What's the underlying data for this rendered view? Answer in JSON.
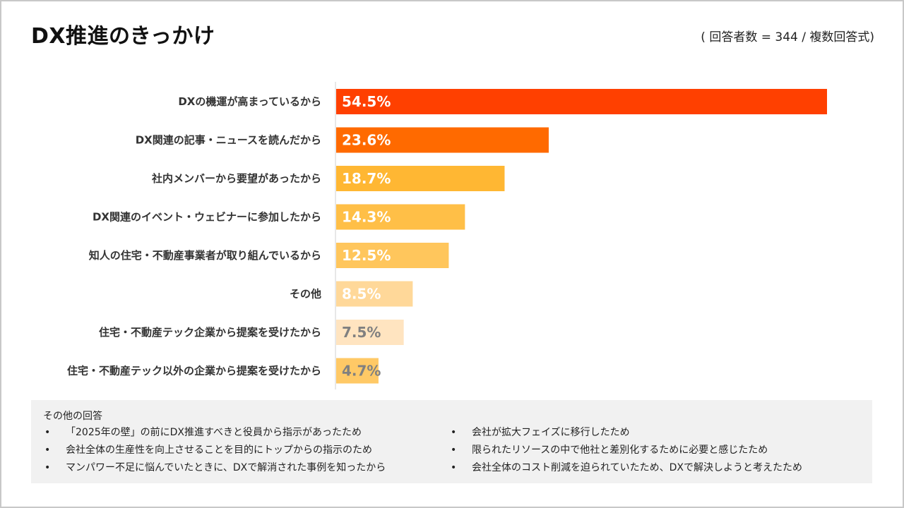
{
  "header": {
    "title": "DX推進のきっかけ",
    "subtitle": "( 回答者数 = 344 / 複数回答式)"
  },
  "chart_data": {
    "type": "bar",
    "orientation": "horizontal",
    "title": "DX推進のきっかけ",
    "subtitle": "( 回答者数 = 344 / 複数回答式)",
    "categories": [
      "DXの機運が高まっているから",
      "DX関連の記事・ニュースを読んだから",
      "社内メンバーから要望があったから",
      "DX関連のイベント・ウェビナーに参加したから",
      "知人の住宅・不動産事業者が取り組んでいるから",
      "その他",
      "住宅・不動産テック企業から提案を受けたから",
      "住宅・不動産テック以外の企業から提案を受けたから"
    ],
    "values": [
      54.5,
      23.6,
      18.7,
      14.3,
      12.5,
      8.5,
      7.5,
      4.7
    ],
    "labels": [
      "54.5%",
      "23.6%",
      "18.7%",
      "14.3%",
      "12.5%",
      "8.5%",
      "7.5%",
      "4.7%"
    ],
    "colors": [
      "#ff4000",
      "#ff6a00",
      "#ffb733",
      "#ffbf47",
      "#ffc65c",
      "#ffd899",
      "#ffe4c0",
      "#ffc966"
    ],
    "label_colors": [
      "#ffffff",
      "#ffffff",
      "#ffffff",
      "#ffffff",
      "#ffffff",
      "#ffffff",
      "#808080",
      "#808080"
    ],
    "xlim": [
      0,
      60
    ],
    "xlabel": "",
    "ylabel": ""
  },
  "others": {
    "heading": "その他の回答",
    "bullet": "•",
    "left": [
      "「2025年の壁」の前にDX推進すべきと役員から指示があったため",
      "会社全体の生産性を向上させることを目的にトップからの指示のため",
      "マンパワー不足に悩んでいたときに、DXで解消された事例を知ったから"
    ],
    "right": [
      "会社が拡大フェイズに移行したため",
      "限られたリソースの中で他社と差別化するために必要と感じたため",
      "会社全体のコスト削減を迫られていたため、DXで解決しようと考えたため"
    ]
  }
}
